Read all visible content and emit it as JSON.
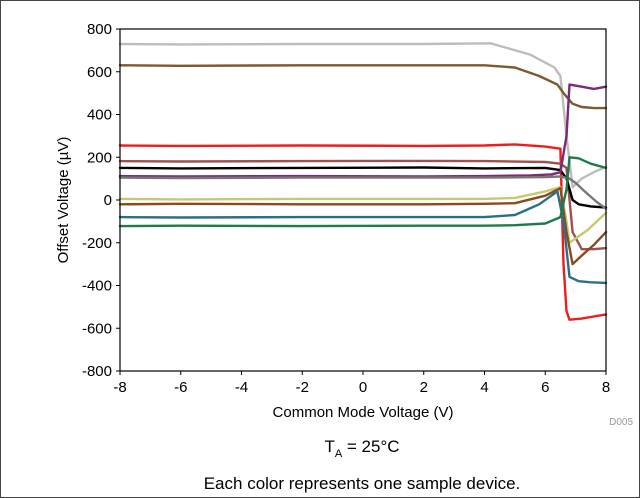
{
  "chart_data": {
    "type": "line",
    "title": "",
    "xlabel": "Common Mode Voltage (V)",
    "ylabel": "Offset Voltage (µV)",
    "xlim": [
      -8,
      8
    ],
    "ylim": [
      -800,
      800
    ],
    "xticks": [
      "-8",
      "-6",
      "-4",
      "-2",
      "0",
      "2",
      "4",
      "6",
      "8"
    ],
    "yticks": [
      "800",
      "600",
      "400",
      "200",
      "0",
      "-200",
      "-400",
      "-600",
      "-800"
    ],
    "grid": false,
    "legend": "none",
    "code": "D005",
    "temperature_label": {
      "base": "T",
      "sub": "A",
      "rest": " = 25°C"
    },
    "footnote": "Each color represents one sample device.",
    "series": [
      {
        "color": "#bdbdbd",
        "x": [
          -8,
          -6,
          -2,
          2,
          4.2,
          5.5,
          6.3,
          6.5,
          6.7,
          6.9,
          7.2,
          7.6,
          8
        ],
        "y": [
          730,
          728,
          730,
          730,
          733,
          680,
          620,
          580,
          300,
          60,
          100,
          130,
          155
        ]
      },
      {
        "color": "#7a5a2e",
        "x": [
          -8,
          -6,
          -2,
          2,
          4,
          5,
          5.8,
          6.4,
          6.6,
          6.9,
          7.2,
          7.6,
          8
        ],
        "y": [
          630,
          628,
          630,
          630,
          630,
          620,
          580,
          540,
          500,
          450,
          435,
          430,
          430
        ]
      },
      {
        "color": "#ee1c1c",
        "x": [
          -8,
          -6,
          -2,
          2,
          4,
          5,
          6,
          6.5,
          6.6,
          6.7,
          6.8,
          7.2,
          7.6,
          8
        ],
        "y": [
          255,
          253,
          255,
          253,
          255,
          260,
          250,
          240,
          -300,
          -520,
          -560,
          -555,
          -545,
          -535
        ]
      },
      {
        "color": "#a05050",
        "x": [
          -8,
          -6,
          -2,
          2,
          4,
          6,
          6.5,
          6.7,
          6.9,
          7.2,
          7.6,
          8
        ],
        "y": [
          182,
          180,
          182,
          183,
          182,
          178,
          170,
          150,
          -150,
          -230,
          -230,
          -225
        ]
      },
      {
        "color": "#000000",
        "x": [
          -8,
          -6,
          -2,
          2,
          4,
          6,
          6.5,
          6.7,
          6.9,
          7.1,
          7.5,
          8
        ],
        "y": [
          150,
          148,
          150,
          152,
          148,
          150,
          140,
          100,
          0,
          -20,
          -30,
          -35
        ]
      },
      {
        "color": "#7a2a7a",
        "x": [
          -8,
          -6,
          -2,
          2,
          4,
          5.5,
          6.2,
          6.5,
          6.7,
          6.8,
          7.2,
          7.6,
          8
        ],
        "y": [
          112,
          110,
          112,
          110,
          112,
          115,
          120,
          130,
          300,
          540,
          530,
          520,
          530
        ]
      },
      {
        "color": "#777777",
        "x": [
          -8,
          -6,
          -2,
          2,
          4,
          6,
          6.5,
          6.8,
          7.0,
          7.3,
          7.7,
          8
        ],
        "y": [
          105,
          103,
          105,
          105,
          105,
          107,
          110,
          100,
          80,
          40,
          -10,
          -40
        ]
      },
      {
        "color": "#c8c870",
        "x": [
          -8,
          -6,
          -2,
          2,
          4,
          5,
          6,
          6.5,
          6.7,
          6.8,
          7.0,
          7.4,
          8
        ],
        "y": [
          5,
          3,
          5,
          5,
          5,
          10,
          40,
          60,
          -100,
          -200,
          -180,
          -140,
          -60
        ]
      },
      {
        "color": "#8b4a1e",
        "x": [
          -8,
          -6,
          -2,
          2,
          4,
          5,
          6,
          6.5,
          6.7,
          6.9,
          7.2,
          7.6,
          8
        ],
        "y": [
          -20,
          -18,
          -20,
          -20,
          -18,
          -15,
          20,
          55,
          -150,
          -300,
          -260,
          -210,
          -150
        ]
      },
      {
        "color": "#2a6f8a",
        "x": [
          -8,
          -6,
          -2,
          2,
          4,
          5,
          5.8,
          6.4,
          6.6,
          6.8,
          7.1,
          7.5,
          8
        ],
        "y": [
          -80,
          -82,
          -80,
          -80,
          -80,
          -70,
          -20,
          40,
          -100,
          -360,
          -380,
          -385,
          -388
        ]
      },
      {
        "color": "#1f7a4a",
        "x": [
          -8,
          -6,
          -2,
          2,
          4,
          5,
          6,
          6.5,
          6.7,
          6.8,
          7.1,
          7.5,
          8
        ],
        "y": [
          -122,
          -120,
          -122,
          -120,
          -120,
          -118,
          -110,
          -80,
          50,
          200,
          195,
          170,
          150
        ]
      }
    ]
  }
}
